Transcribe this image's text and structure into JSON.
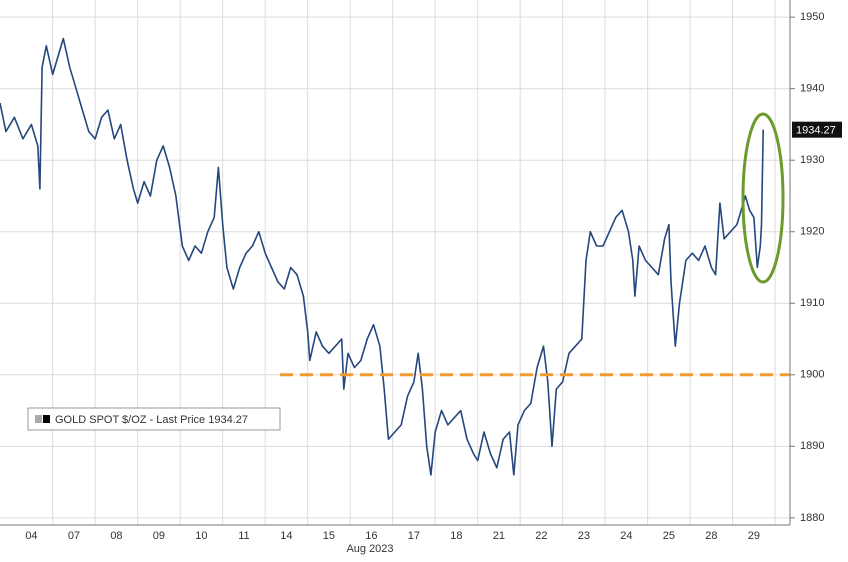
{
  "chart_data": {
    "type": "line",
    "x_label": "Aug 2023",
    "x": [
      -0.24,
      -0.1,
      0.1,
      0.3,
      0.5,
      0.65,
      0.7,
      0.75,
      0.85,
      1.0,
      1.1,
      1.25,
      1.4,
      1.55,
      1.7,
      1.85,
      2.0,
      2.15,
      2.3,
      2.45,
      2.6,
      2.75,
      2.9,
      3.0,
      3.15,
      3.3,
      3.45,
      3.6,
      3.75,
      3.9,
      4.05,
      4.2,
      4.35,
      4.5,
      4.65,
      4.8,
      4.9,
      5.0,
      5.1,
      5.25,
      5.4,
      5.55,
      5.7,
      5.85,
      6.0,
      6.15,
      6.3,
      6.45,
      6.6,
      6.75,
      6.9,
      7.0,
      7.05,
      7.2,
      7.35,
      7.5,
      7.65,
      7.8,
      7.85,
      7.95,
      8.1,
      8.25,
      8.4,
      8.55,
      8.7,
      8.8,
      8.9,
      9.05,
      9.2,
      9.35,
      9.5,
      9.6,
      9.7,
      9.8,
      9.9,
      10.0,
      10.15,
      10.3,
      10.45,
      10.6,
      10.75,
      10.9,
      11.0,
      11.15,
      11.3,
      11.45,
      11.6,
      11.75,
      11.85,
      11.95,
      12.1,
      12.25,
      12.4,
      12.55,
      12.65,
      12.75,
      12.85,
      13.0,
      13.15,
      13.3,
      13.45,
      13.55,
      13.65,
      13.8,
      13.95,
      14.1,
      14.25,
      14.4,
      14.55,
      14.65,
      14.7,
      14.8,
      14.95,
      15.1,
      15.25,
      15.4,
      15.5,
      15.55,
      15.65,
      15.75,
      15.9,
      16.05,
      16.2,
      16.35,
      16.5,
      16.6,
      16.7,
      16.8,
      16.95,
      17.1,
      17.3,
      17.4,
      17.5,
      17.58,
      17.65,
      17.68,
      17.72
    ],
    "series": [
      {
        "name": "GOLD SPOT $/OZ - Last Price 1934.27",
        "color": "#24477e",
        "values": [
          1938,
          1934,
          1936,
          1933,
          1935,
          1932,
          1926,
          1943,
          1946,
          1942,
          1944,
          1947,
          1943,
          1940,
          1937,
          1934,
          1933,
          1936,
          1937,
          1933,
          1935,
          1930,
          1926,
          1924,
          1927,
          1925,
          1930,
          1932,
          1929,
          1925,
          1918,
          1916,
          1918,
          1917,
          1920,
          1922,
          1929,
          1921,
          1915,
          1912,
          1915,
          1917,
          1918,
          1920,
          1917,
          1915,
          1913,
          1912,
          1915,
          1914,
          1911,
          1906,
          1902,
          1906,
          1904,
          1903,
          1904,
          1905,
          1898,
          1903,
          1901,
          1902,
          1905,
          1907,
          1904,
          1898,
          1891,
          1892,
          1893,
          1897,
          1899,
          1903,
          1898,
          1890,
          1886,
          1892,
          1895,
          1893,
          1894,
          1895,
          1891,
          1889,
          1888,
          1892,
          1889,
          1887,
          1891,
          1892,
          1886,
          1893,
          1895,
          1896,
          1901,
          1904,
          1899,
          1890,
          1898,
          1899,
          1903,
          1904,
          1905,
          1916,
          1920,
          1918,
          1918,
          1920,
          1922,
          1923,
          1920,
          1916,
          1911,
          1918,
          1916,
          1915,
          1914,
          1919,
          1921,
          1913,
          1904,
          1910,
          1916,
          1917,
          1916,
          1918,
          1915,
          1914,
          1924,
          1919,
          1920,
          1921,
          1925,
          1923,
          1922,
          1915,
          1918,
          1921,
          1934.27
        ]
      }
    ],
    "last_price": 1934.27,
    "xlim": [
      -0.24,
      18.35
    ],
    "xticks": [
      {
        "value": 0.5,
        "label": "04"
      },
      {
        "value": 1.5,
        "label": "07"
      },
      {
        "value": 2.5,
        "label": "08"
      },
      {
        "value": 3.5,
        "label": "09"
      },
      {
        "value": 4.5,
        "label": "10"
      },
      {
        "value": 5.5,
        "label": "11"
      },
      {
        "value": 6.5,
        "label": "14"
      },
      {
        "value": 7.5,
        "label": "15"
      },
      {
        "value": 8.5,
        "label": "16"
      },
      {
        "value": 9.5,
        "label": "17"
      },
      {
        "value": 10.5,
        "label": "18"
      },
      {
        "value": 11.5,
        "label": "21"
      },
      {
        "value": 12.5,
        "label": "22"
      },
      {
        "value": 13.5,
        "label": "23"
      },
      {
        "value": 14.5,
        "label": "24"
      },
      {
        "value": 15.5,
        "label": "25"
      },
      {
        "value": 16.5,
        "label": "28"
      },
      {
        "value": 17.5,
        "label": "29"
      }
    ],
    "ylim": [
      1879,
      1952.4
    ],
    "yticks": [
      1880,
      1890,
      1900,
      1910,
      1920,
      1930,
      1940,
      1950
    ],
    "grid": true,
    "reference_line": {
      "y": 1900,
      "x_start": 6.35,
      "color": "#f09a30"
    }
  }
}
